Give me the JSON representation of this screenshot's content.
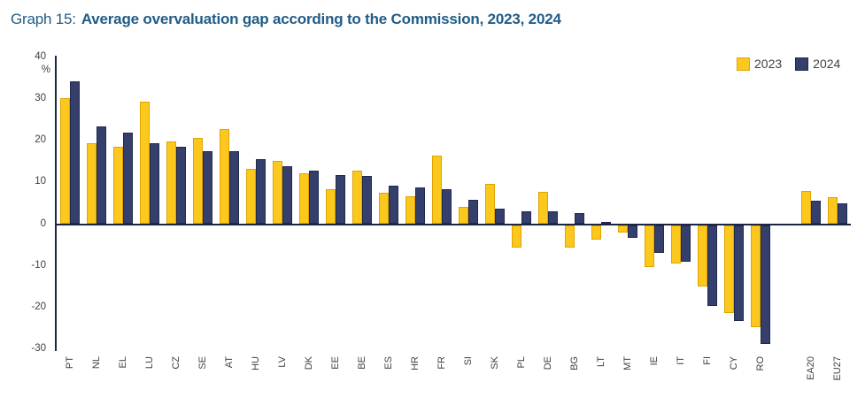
{
  "title": {
    "prefix": "Graph 15:",
    "main": "Average overvaluation gap according to the Commission, 2023, 2024"
  },
  "y_axis": {
    "unit_label": "%",
    "ticks": [
      40,
      30,
      20,
      10,
      0,
      -10,
      -20,
      -30
    ]
  },
  "colors": {
    "series_2023_fill": "#fdc81e",
    "series_2023_border": "#dfa400",
    "series_2024_fill": "#353f6b",
    "series_2024_border": "#20294d",
    "axis": "#1c2541",
    "title_text": "#215c87",
    "tick_text": "#404040"
  },
  "chart_data": {
    "type": "bar",
    "title": "Average overvaluation gap according to the Commission, 2023, 2024",
    "ylabel": "%",
    "ylim": [
      -30,
      40
    ],
    "grid": false,
    "legend_position": "top-right",
    "categories": [
      "PT",
      "NL",
      "EL",
      "LU",
      "CZ",
      "SE",
      "AT",
      "HU",
      "LV",
      "DK",
      "EE",
      "BE",
      "ES",
      "HR",
      "FR",
      "SI",
      "SK",
      "PL",
      "DE",
      "BG",
      "LT",
      "MT",
      "IE",
      "IT",
      "FI",
      "CY",
      "RO",
      "EA20",
      "EU27"
    ],
    "aggregate_categories_with_gap_before": [
      "EA20",
      "EU27"
    ],
    "series": [
      {
        "name": "2023",
        "values": [
          30.2,
          19.5,
          18.5,
          29.4,
          19.9,
          20.6,
          22.8,
          13.2,
          15.1,
          12.3,
          8.3,
          12.8,
          7.6,
          6.6,
          16.5,
          4.2,
          9.7,
          -5.2,
          7.7,
          -5.2,
          -3.3,
          -1.6,
          -9.9,
          -9.1,
          -14.6,
          -21.1,
          -24.4,
          8.0,
          6.5
        ]
      },
      {
        "name": "2024",
        "values": [
          34.3,
          23.5,
          22.0,
          19.4,
          18.5,
          17.6,
          17.4,
          15.5,
          13.9,
          12.9,
          11.7,
          11.5,
          9.3,
          8.9,
          8.3,
          5.9,
          3.7,
          3.0,
          3.0,
          2.6,
          0.5,
          -2.9,
          -6.5,
          -8.8,
          -19.4,
          -23.0,
          -28.4,
          5.6,
          5.0
        ]
      }
    ]
  }
}
